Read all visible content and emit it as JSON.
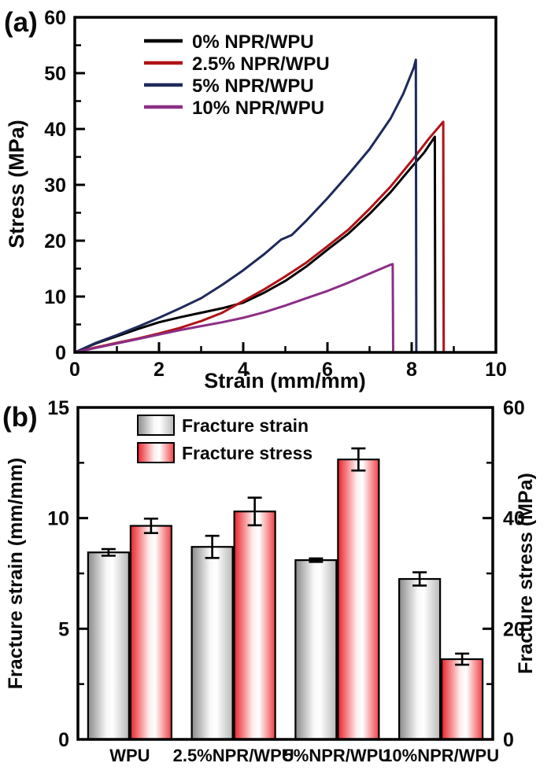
{
  "page": {
    "background": "#ffffff"
  },
  "panels": {
    "a": {
      "tag": "(a)"
    },
    "b": {
      "tag": "(b)"
    }
  },
  "chart_data": [
    {
      "type": "line",
      "panel": "a",
      "title": "",
      "xlabel": "Strain (mm/mm)",
      "ylabel": "Stress (MPa)",
      "xlim": [
        0,
        10
      ],
      "ylim": [
        0,
        60
      ],
      "xticks": [
        0,
        2,
        4,
        6,
        8,
        10
      ],
      "xticks_minor": [
        1,
        3,
        5,
        7,
        9
      ],
      "yticks": [
        0,
        10,
        20,
        30,
        40,
        50,
        60
      ],
      "yticks_minor": [
        5,
        15,
        25,
        35,
        45,
        55
      ],
      "grid": false,
      "legend_position": "top-left-inside",
      "series": [
        {
          "name": "0% NPR/WPU",
          "color": "#000000",
          "fracture_strain": 8.55,
          "fracture_stress": 38.6,
          "points": [
            [
              0,
              0
            ],
            [
              0.5,
              1.6
            ],
            [
              1,
              2.9
            ],
            [
              1.5,
              4.2
            ],
            [
              2,
              5.4
            ],
            [
              2.5,
              6.3
            ],
            [
              3,
              7.1
            ],
            [
              3.5,
              7.9
            ],
            [
              4,
              8.9
            ],
            [
              4.5,
              10.7
            ],
            [
              5,
              12.8
            ],
            [
              5.5,
              15.4
            ],
            [
              6,
              18.4
            ],
            [
              6.5,
              21.3
            ],
            [
              7,
              24.8
            ],
            [
              7.5,
              28.7
            ],
            [
              8,
              33.2
            ],
            [
              8.3,
              35.8
            ],
            [
              8.55,
              38.6
            ],
            [
              8.56,
              0
            ],
            [
              8.68,
              0
            ]
          ]
        },
        {
          "name": "2.5% NPR/WPU",
          "color": "#b01218",
          "fracture_strain": 8.75,
          "fracture_stress": 41.3,
          "points": [
            [
              0,
              0
            ],
            [
              0.5,
              0.9
            ],
            [
              1,
              1.7
            ],
            [
              1.5,
              2.5
            ],
            [
              2,
              3.4
            ],
            [
              2.5,
              4.4
            ],
            [
              3,
              5.6
            ],
            [
              3.5,
              7.1
            ],
            [
              4,
              9.2
            ],
            [
              4.5,
              11.3
            ],
            [
              5,
              13.6
            ],
            [
              5.5,
              16.1
            ],
            [
              6,
              19.0
            ],
            [
              6.5,
              22.0
            ],
            [
              7,
              25.7
            ],
            [
              7.5,
              29.7
            ],
            [
              8,
              34.3
            ],
            [
              8.4,
              38.2
            ],
            [
              8.75,
              41.3
            ],
            [
              8.76,
              0
            ],
            [
              8.93,
              0
            ]
          ]
        },
        {
          "name": "5% NPR/WPU",
          "color": "#1f2a5a",
          "fracture_strain": 8.1,
          "fracture_stress": 52.4,
          "points": [
            [
              0,
              0
            ],
            [
              0.5,
              1.7
            ],
            [
              1,
              3.1
            ],
            [
              1.5,
              4.6
            ],
            [
              2,
              6.2
            ],
            [
              2.5,
              7.9
            ],
            [
              3,
              9.7
            ],
            [
              3.5,
              12.1
            ],
            [
              4,
              14.7
            ],
            [
              4.5,
              17.6
            ],
            [
              4.9,
              20.2
            ],
            [
              5.15,
              21.0
            ],
            [
              5.5,
              23.6
            ],
            [
              6,
              27.6
            ],
            [
              6.5,
              31.9
            ],
            [
              7,
              36.4
            ],
            [
              7.5,
              41.9
            ],
            [
              7.8,
              46.3
            ],
            [
              8.05,
              51.0
            ],
            [
              8.1,
              52.4
            ],
            [
              8.11,
              0
            ],
            [
              8.24,
              0
            ]
          ]
        },
        {
          "name": "10% NPR/WPU",
          "color": "#8b2f86",
          "fracture_strain": 7.55,
          "fracture_stress": 15.8,
          "points": [
            [
              0,
              0
            ],
            [
              0.5,
              0.8
            ],
            [
              1,
              1.6
            ],
            [
              1.5,
              2.4
            ],
            [
              2,
              3.2
            ],
            [
              2.5,
              4.0
            ],
            [
              3,
              4.7
            ],
            [
              3.5,
              5.4
            ],
            [
              4,
              6.2
            ],
            [
              4.5,
              7.2
            ],
            [
              5,
              8.4
            ],
            [
              5.5,
              9.7
            ],
            [
              6,
              11.0
            ],
            [
              6.5,
              12.5
            ],
            [
              7,
              14.1
            ],
            [
              7.5,
              15.7
            ],
            [
              7.55,
              15.8
            ],
            [
              7.56,
              0
            ],
            [
              7.65,
              0
            ]
          ]
        }
      ]
    },
    {
      "type": "bar",
      "panel": "b",
      "categories": [
        "WPU",
        "2.5%NPR/WPU",
        "5%NPR/WPU",
        "10%NPR/WPU"
      ],
      "ylabel_left": "Fracture strain (mm/mm)",
      "ylabel_right": "Fracture stress (MPa)",
      "ylim_left": [
        0,
        15
      ],
      "yticks_left": [
        0,
        5,
        10,
        15
      ],
      "yticks_left_minor": [
        2.5,
        7.5,
        12.5
      ],
      "ylim_right": [
        0,
        60
      ],
      "yticks_right": [
        0,
        20,
        40,
        60
      ],
      "yticks_right_minor": [
        10,
        30,
        50
      ],
      "grid": false,
      "legend_position": "top-inside",
      "series": [
        {
          "name": "Fracture strain",
          "axis": "left",
          "values": [
            8.45,
            8.7,
            8.1,
            7.25
          ],
          "errors": [
            0.15,
            0.5,
            0.08,
            0.3
          ],
          "gradient": [
            "#8a8a8a",
            "#f8f8f8",
            "#ffffff",
            "#b8b8b8"
          ],
          "edge": "#000000"
        },
        {
          "name": "Fracture stress",
          "axis": "right",
          "values": [
            38.6,
            41.2,
            50.6,
            14.5
          ],
          "errors": [
            1.3,
            2.5,
            2.0,
            1.0
          ],
          "gradient": [
            "#e9222a",
            "#ffecec",
            "#ffffff",
            "#ef4046"
          ],
          "edge": "#000000"
        }
      ]
    }
  ]
}
